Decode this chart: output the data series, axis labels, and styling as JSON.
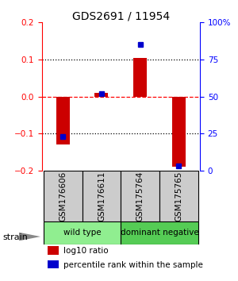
{
  "title": "GDS2691 / 11954",
  "samples": [
    "GSM176606",
    "GSM176611",
    "GSM175764",
    "GSM175765"
  ],
  "log10_ratio": [
    -0.13,
    0.01,
    0.105,
    -0.19
  ],
  "percentile_rank": [
    23,
    52,
    85,
    3
  ],
  "ylim_left": [
    -0.2,
    0.2
  ],
  "ylim_right": [
    0,
    100
  ],
  "yticks_left": [
    -0.2,
    -0.1,
    0.0,
    0.1,
    0.2
  ],
  "yticks_right": [
    0,
    25,
    50,
    75,
    100
  ],
  "ytick_labels_right": [
    "0",
    "25",
    "50",
    "75",
    "100%"
  ],
  "bar_color": "#cc0000",
  "dot_color": "#0000cc",
  "bar_width": 0.35,
  "group_wt_color": "#90ee90",
  "group_dn_color": "#55cc55",
  "sample_box_color": "#cccccc",
  "background_color": "#ffffff",
  "title_fontsize": 10,
  "tick_fontsize": 7.5,
  "label_fontsize": 7.5,
  "legend_fontsize": 7.5
}
